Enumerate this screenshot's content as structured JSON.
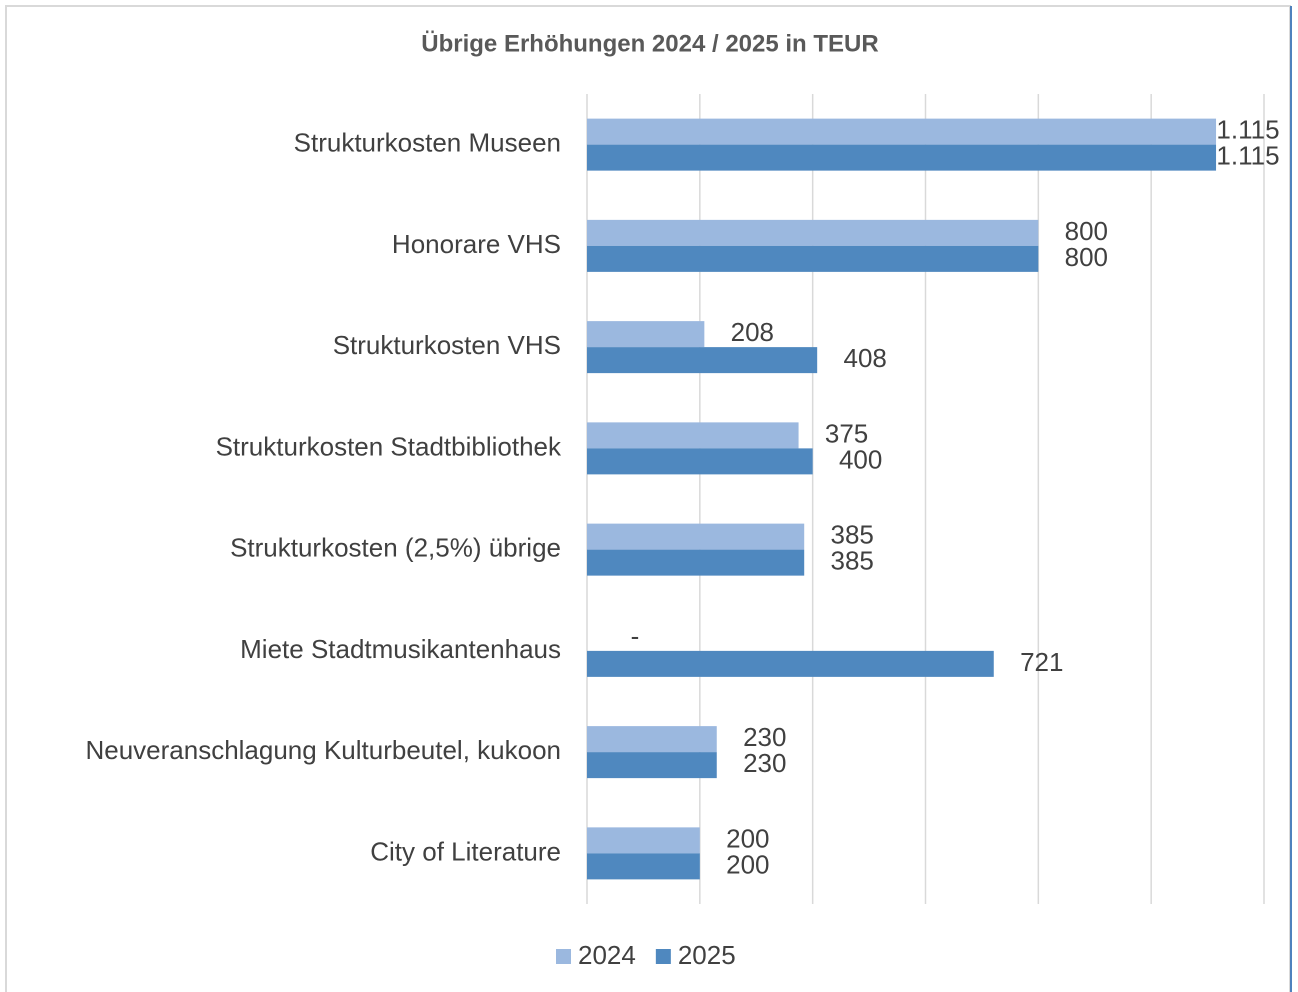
{
  "chart_data": {
    "type": "bar",
    "orientation": "horizontal",
    "title": "Übrige Erhöhungen 2024 / 2025 in TEUR",
    "categories": [
      "Strukturkosten Museen",
      "Honorare VHS",
      "Strukturkosten VHS",
      "Strukturkosten Stadtbibliothek",
      "Strukturkosten (2,5%) übrige",
      "Miete Stadtmusikantenhaus",
      "Neuveranschlagung Kulturbeutel, kukoon",
      "City of Literature"
    ],
    "series": [
      {
        "name": "2024",
        "color": "#9bb8df",
        "values": [
          1115,
          800,
          208,
          375,
          385,
          0,
          230,
          200
        ],
        "value_labels": [
          "1.115",
          "800",
          "208",
          "375",
          "385",
          "-",
          "230",
          "200"
        ]
      },
      {
        "name": "2025",
        "color": "#4f88bf",
        "values": [
          1115,
          800,
          408,
          400,
          385,
          721,
          230,
          200
        ],
        "value_labels": [
          "1.115",
          "800",
          "408",
          "400",
          "385",
          "721",
          "230",
          "200"
        ]
      }
    ],
    "xlim": [
      0,
      1200
    ],
    "xticks": [
      0,
      200,
      400,
      600,
      800,
      1000,
      1200
    ],
    "grid": true,
    "legend": "bottom"
  }
}
